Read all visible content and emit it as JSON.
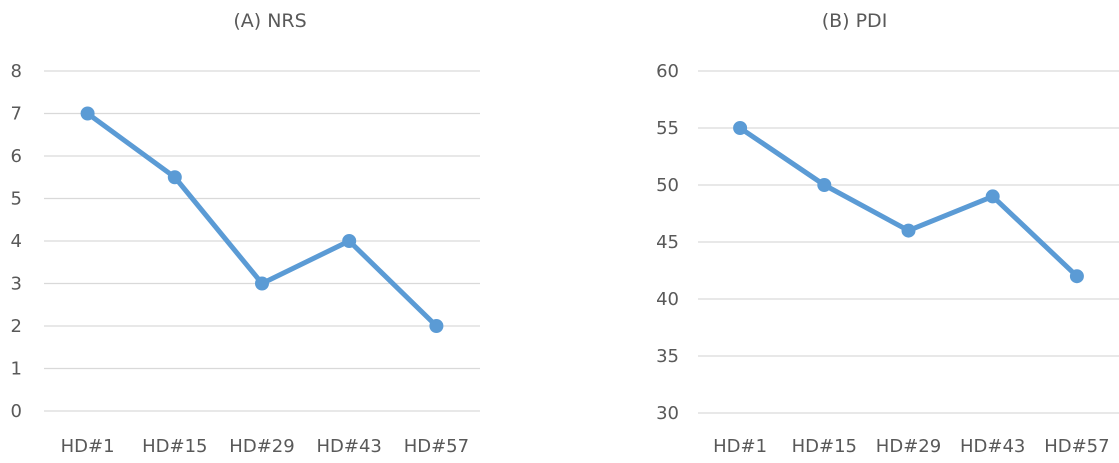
{
  "chart_data": [
    {
      "type": "line",
      "title": "(A)  NRS",
      "categories": [
        "HD#1",
        "HD#15",
        "HD#29",
        "HD#43",
        "HD#57"
      ],
      "values": [
        7,
        5.5,
        3,
        4,
        2
      ],
      "ylim": [
        0,
        8
      ],
      "yticks": [
        0,
        1,
        2,
        3,
        4,
        5,
        6,
        7,
        8
      ],
      "grid": true,
      "color": "#5b9bd5"
    },
    {
      "type": "line",
      "title": "(B)  PDI",
      "categories": [
        "HD#1",
        "HD#15",
        "HD#29",
        "HD#43",
        "HD#57"
      ],
      "values": [
        55,
        50,
        46,
        49,
        42
      ],
      "ylim": [
        30,
        60
      ],
      "yticks": [
        30,
        35,
        40,
        45,
        50,
        55,
        60
      ],
      "grid": true,
      "color": "#5b9bd5"
    }
  ]
}
